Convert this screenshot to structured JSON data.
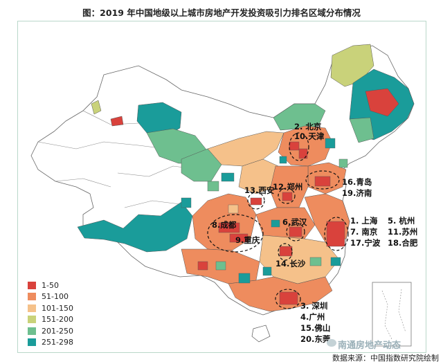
{
  "title": "图：2019 年中国地级以上城市房地产开发投资吸引力排名区域分布情况",
  "legend": [
    {
      "label": "1-50",
      "color": "#d9423c"
    },
    {
      "label": "51-100",
      "color": "#ee8c5e"
    },
    {
      "label": "101-150",
      "color": "#f5c18a"
    },
    {
      "label": "151-200",
      "color": "#c9d27a"
    },
    {
      "label": "201-250",
      "color": "#6ebf8f"
    },
    {
      "label": "251-298",
      "color": "#1a9c9a"
    }
  ],
  "city_labels": {
    "beijing_tianjin": [
      "2. 北京",
      "10.天津"
    ],
    "qingdao_jinan": [
      "16.青岛",
      "19.济南"
    ],
    "xian": "13.西安",
    "zhengzhou": "12.郑州",
    "chengdu": "8.成都",
    "chongqing": "9.重庆",
    "wuhan": "6.武汉",
    "changsha": "14.长沙",
    "yangtze_delta": [
      "1. 上海",
      "5. 杭州",
      "7. 南京",
      "11.苏州",
      "17.宁波",
      "18.合肥"
    ],
    "prd": [
      "3. 深圳",
      "4.广州",
      "15.佛山",
      "20.东莞"
    ]
  },
  "watermark": "南通房地产动态",
  "source": "数据来源：中国指数研究院绘制"
}
